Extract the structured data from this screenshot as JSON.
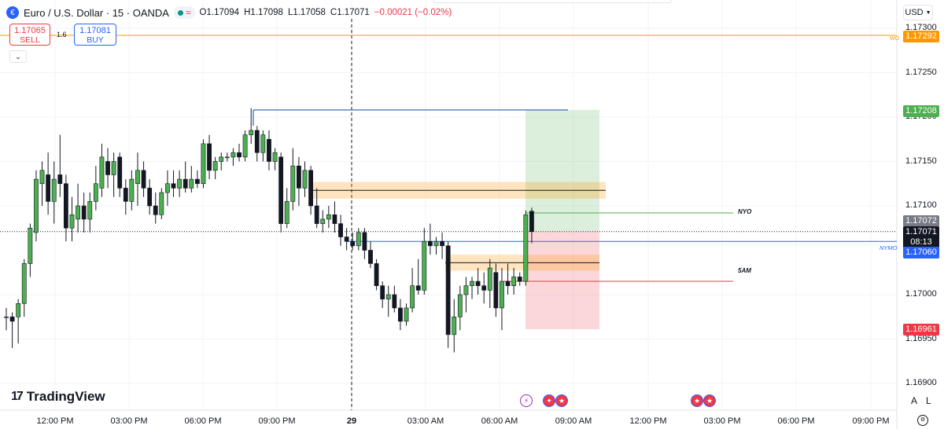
{
  "legend": {
    "symbol": "Euro / U.S. Dollar · 15 · OANDA",
    "open": "O1.17094",
    "high": "H1.17098",
    "low": "L1.17058",
    "close": "C1.17071",
    "change": "−0.00021 (−0.02%)"
  },
  "trade": {
    "sell_price": "1.17065",
    "sell_label": "SELL",
    "spread": "1.6",
    "buy_price": "1.17081",
    "buy_label": "BUY"
  },
  "currency": "USD",
  "y_ticks": [
    "1.17300",
    "1.17250",
    "1.17200",
    "1.17150",
    "1.17100",
    "1.17000",
    "1.16950",
    "1.16900"
  ],
  "x_ticks": [
    {
      "label": "12:00 PM",
      "bold": false
    },
    {
      "label": "03:00 PM",
      "bold": false
    },
    {
      "label": "06:00 PM",
      "bold": false
    },
    {
      "label": "09:00 PM",
      "bold": false
    },
    {
      "label": "29",
      "bold": true
    },
    {
      "label": "03:00 AM",
      "bold": false
    },
    {
      "label": "06:00 AM",
      "bold": false
    },
    {
      "label": "09:00 AM",
      "bold": false
    },
    {
      "label": "12:00 PM",
      "bold": false
    },
    {
      "label": "03:00 PM",
      "bold": false
    },
    {
      "label": "06:00 PM",
      "bold": false
    },
    {
      "label": "09:00 PM",
      "bold": false
    }
  ],
  "price_tags": {
    "wo": "1.17292",
    "target": "1.17208",
    "prev": "1.17072",
    "last": "1.17071",
    "countdown": "08:13",
    "nymo": "1.17060",
    "stop": "1.16961"
  },
  "line_labels": {
    "wo": "WO",
    "nyo": "NYO",
    "nymo": "NYMO",
    "five_am": "5AM"
  },
  "logo": "TradingView",
  "scale_buttons": [
    "A",
    "L"
  ],
  "colors": {
    "up": "#4caf50",
    "down": "#131722",
    "wo": "#ff9800",
    "nymo": "#2962ff",
    "nyo": "#4caf50",
    "five_am": "#f23645",
    "target": "#4caf50",
    "stop": "#f23645"
  },
  "chart_data": {
    "type": "candlestick",
    "symbol": "EURUSD",
    "timeframe": "15",
    "ylim": [
      1.1688,
      1.1731
    ],
    "levels": [
      {
        "name": "WO",
        "value": 1.17292
      },
      {
        "name": "NYO",
        "value": 1.17092
      },
      {
        "name": "NYMO",
        "value": 1.1706
      },
      {
        "name": "5AM",
        "value": 1.17015
      }
    ],
    "position": {
      "entry": 1.17071,
      "target": 1.17208,
      "stop": 1.16961
    },
    "zones": [
      {
        "top": 1.17127,
        "bottom": 1.17108
      },
      {
        "top": 1.17045,
        "bottom": 1.17027
      }
    ],
    "candles": [
      [
        1.16975,
        1.16985,
        1.1696,
        1.16975
      ],
      [
        1.16975,
        1.1698,
        1.1694,
        1.1697
      ],
      [
        1.16975,
        1.16995,
        1.16945,
        1.1699
      ],
      [
        1.1699,
        1.1704,
        1.16975,
        1.17035
      ],
      [
        1.17035,
        1.1708,
        1.1702,
        1.17075
      ],
      [
        1.1707,
        1.1714,
        1.1706,
        1.1713
      ],
      [
        1.17125,
        1.1715,
        1.171,
        1.1714
      ],
      [
        1.17135,
        1.1716,
        1.1709,
        1.17105
      ],
      [
        1.17105,
        1.1715,
        1.1708,
        1.1713
      ],
      [
        1.17135,
        1.1718,
        1.1711,
        1.17125
      ],
      [
        1.17125,
        1.17135,
        1.1706,
        1.17075
      ],
      [
        1.17075,
        1.1711,
        1.1706,
        1.1709
      ],
      [
        1.17085,
        1.17125,
        1.1707,
        1.171
      ],
      [
        1.171,
        1.17115,
        1.1707,
        1.17085
      ],
      [
        1.17085,
        1.17115,
        1.1707,
        1.17105
      ],
      [
        1.17105,
        1.17145,
        1.17095,
        1.17125
      ],
      [
        1.1712,
        1.1717,
        1.1711,
        1.17155
      ],
      [
        1.1715,
        1.17165,
        1.1712,
        1.17135
      ],
      [
        1.17135,
        1.1716,
        1.1711,
        1.1715
      ],
      [
        1.17155,
        1.1716,
        1.1711,
        1.1712
      ],
      [
        1.1712,
        1.1713,
        1.1709,
        1.17105
      ],
      [
        1.17105,
        1.1714,
        1.17095,
        1.1713
      ],
      [
        1.17125,
        1.1716,
        1.171,
        1.1714
      ],
      [
        1.1714,
        1.1715,
        1.1711,
        1.1712
      ],
      [
        1.1712,
        1.1713,
        1.1709,
        1.171
      ],
      [
        1.171,
        1.17115,
        1.1708,
        1.1709
      ],
      [
        1.1709,
        1.1712,
        1.17085,
        1.17115
      ],
      [
        1.17115,
        1.1714,
        1.171,
        1.17125
      ],
      [
        1.17125,
        1.1714,
        1.1711,
        1.1712
      ],
      [
        1.1712,
        1.1714,
        1.1711,
        1.1713
      ],
      [
        1.1713,
        1.1715,
        1.17115,
        1.1712
      ],
      [
        1.1712,
        1.17145,
        1.17115,
        1.1713
      ],
      [
        1.1713,
        1.1714,
        1.1712,
        1.17125
      ],
      [
        1.17125,
        1.17175,
        1.1712,
        1.1717
      ],
      [
        1.1717,
        1.1718,
        1.1713,
        1.1714
      ],
      [
        1.1714,
        1.17155,
        1.1713,
        1.1715
      ],
      [
        1.1715,
        1.1716,
        1.1714,
        1.17155
      ],
      [
        1.17155,
        1.1716,
        1.1715,
        1.17155
      ],
      [
        1.17155,
        1.17165,
        1.17145,
        1.1716
      ],
      [
        1.1716,
        1.1717,
        1.1715,
        1.17155
      ],
      [
        1.17155,
        1.17185,
        1.1715,
        1.1718
      ],
      [
        1.1718,
        1.1721,
        1.1717,
        1.17185
      ],
      [
        1.17185,
        1.1719,
        1.1715,
        1.1716
      ],
      [
        1.1716,
        1.17185,
        1.1715,
        1.1718
      ],
      [
        1.17175,
        1.17185,
        1.1714,
        1.1715
      ],
      [
        1.1715,
        1.17165,
        1.1714,
        1.1716
      ],
      [
        1.17155,
        1.1716,
        1.1707,
        1.1708
      ],
      [
        1.1708,
        1.1712,
        1.17075,
        1.17105
      ],
      [
        1.17105,
        1.17165,
        1.17095,
        1.17145
      ],
      [
        1.17145,
        1.17155,
        1.171,
        1.1712
      ],
      [
        1.1712,
        1.1715,
        1.1711,
        1.1714
      ],
      [
        1.1714,
        1.17145,
        1.1709,
        1.171
      ],
      [
        1.171,
        1.1712,
        1.17075,
        1.1708
      ],
      [
        1.1708,
        1.17095,
        1.1707,
        1.17085
      ],
      [
        1.17085,
        1.171,
        1.17075,
        1.1709
      ],
      [
        1.1709,
        1.17105,
        1.1707,
        1.1708
      ],
      [
        1.1708,
        1.1709,
        1.17055,
        1.17065
      ],
      [
        1.17065,
        1.17075,
        1.1705,
        1.1706
      ],
      [
        1.1706,
        1.1707,
        1.1705,
        1.17055
      ],
      [
        1.17055,
        1.17075,
        1.1705,
        1.1707
      ],
      [
        1.1707,
        1.17075,
        1.1704,
        1.1705
      ],
      [
        1.1705,
        1.1706,
        1.1703,
        1.17035
      ],
      [
        1.17035,
        1.1704,
        1.17005,
        1.1701
      ],
      [
        1.1701,
        1.17015,
        1.16985,
        1.16995
      ],
      [
        1.16995,
        1.1701,
        1.16975,
        1.17
      ],
      [
        1.17,
        1.1701,
        1.1698,
        1.16985
      ],
      [
        1.16985,
        1.16995,
        1.1696,
        1.1697
      ],
      [
        1.1697,
        1.1699,
        1.16965,
        1.16985
      ],
      [
        1.16985,
        1.1703,
        1.1698,
        1.1701
      ],
      [
        1.1701,
        1.1704,
        1.17,
        1.17005
      ],
      [
        1.17005,
        1.17075,
        1.17,
        1.1706
      ],
      [
        1.1706,
        1.1708,
        1.17045,
        1.17055
      ],
      [
        1.17055,
        1.17065,
        1.17045,
        1.1706
      ],
      [
        1.1706,
        1.1707,
        1.1704,
        1.17055
      ],
      [
        1.17055,
        1.1706,
        1.1694,
        1.16955
      ],
      [
        1.16955,
        1.16995,
        1.16935,
        1.16975
      ],
      [
        1.16975,
        1.1701,
        1.1696,
        1.17
      ],
      [
        1.17,
        1.1702,
        1.1698,
        1.1701
      ],
      [
        1.1701,
        1.1702,
        1.16995,
        1.17015
      ],
      [
        1.17015,
        1.1703,
        1.17,
        1.1701
      ],
      [
        1.1701,
        1.17025,
        1.1699,
        1.17005
      ],
      [
        1.17005,
        1.1704,
        1.16985,
        1.1703
      ],
      [
        1.17025,
        1.17035,
        1.16975,
        1.16985
      ],
      [
        1.16985,
        1.1703,
        1.1696,
        1.17015
      ],
      [
        1.17015,
        1.17035,
        1.17,
        1.1701
      ],
      [
        1.1701,
        1.1703,
        1.17,
        1.1702
      ],
      [
        1.1702,
        1.17025,
        1.1701,
        1.17015
      ],
      [
        1.17015,
        1.17095,
        1.1701,
        1.1709
      ],
      [
        1.17094,
        1.17098,
        1.17058,
        1.17071
      ]
    ]
  }
}
